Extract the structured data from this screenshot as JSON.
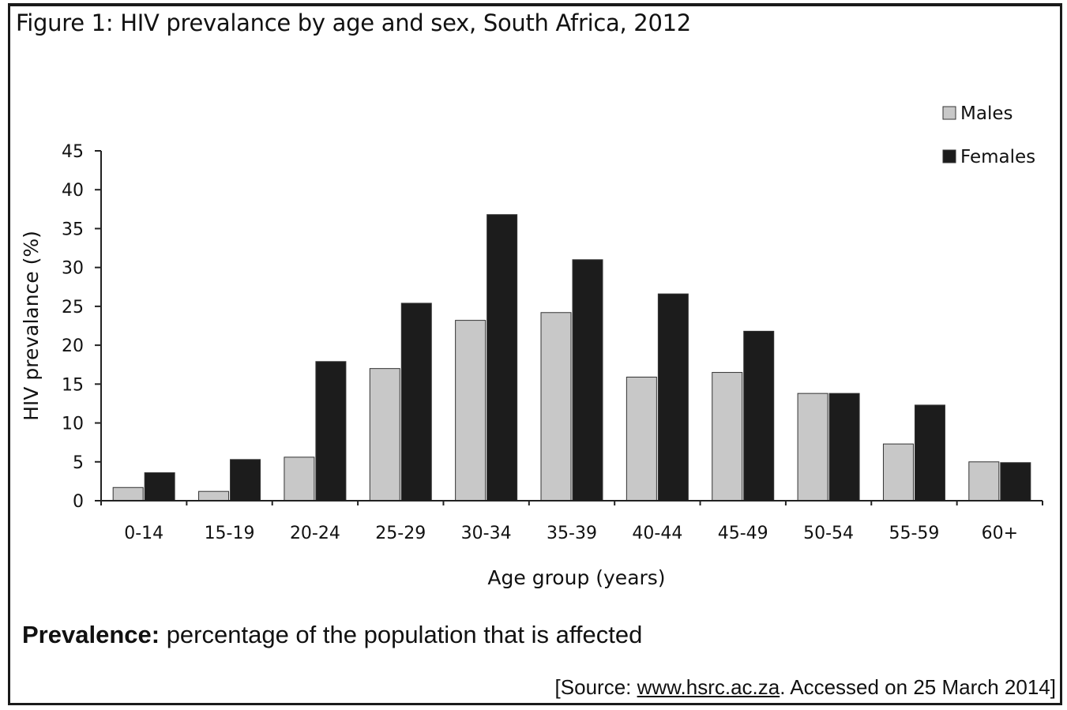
{
  "figure": {
    "title": "Figure 1: HIV prevalance by age and sex, South  Africa, 2012"
  },
  "definition": {
    "term": "Prevalence:",
    "text": "percentage of the population that is affected"
  },
  "source": {
    "open": "[Source: ",
    "link": "www.hsrc.ac.za",
    "rest": ". Accessed on 25 March 2014]"
  },
  "chart_data": {
    "type": "bar",
    "title": "",
    "xlabel": "Age group (years)",
    "ylabel": "HIV prevalance (%)",
    "ylim": [
      0,
      45
    ],
    "yticks": [
      0,
      5,
      10,
      15,
      20,
      25,
      30,
      35,
      40,
      45
    ],
    "grid": false,
    "legend_position": "top-right",
    "categories": [
      "0-14",
      "15-19",
      "20-24",
      "25-29",
      "30-34",
      "35-39",
      "40-44",
      "45-49",
      "50-54",
      "55-59",
      "60+"
    ],
    "series": [
      {
        "name": "Males",
        "color": "#c8c8c8",
        "values": [
          1.7,
          1.2,
          5.6,
          17.0,
          23.2,
          24.2,
          15.9,
          16.5,
          13.8,
          7.3,
          5.0
        ]
      },
      {
        "name": "Females",
        "color": "#1c1c1c",
        "values": [
          3.6,
          5.3,
          17.9,
          25.4,
          36.8,
          31.0,
          26.6,
          21.8,
          13.8,
          12.3,
          4.9
        ]
      }
    ]
  }
}
